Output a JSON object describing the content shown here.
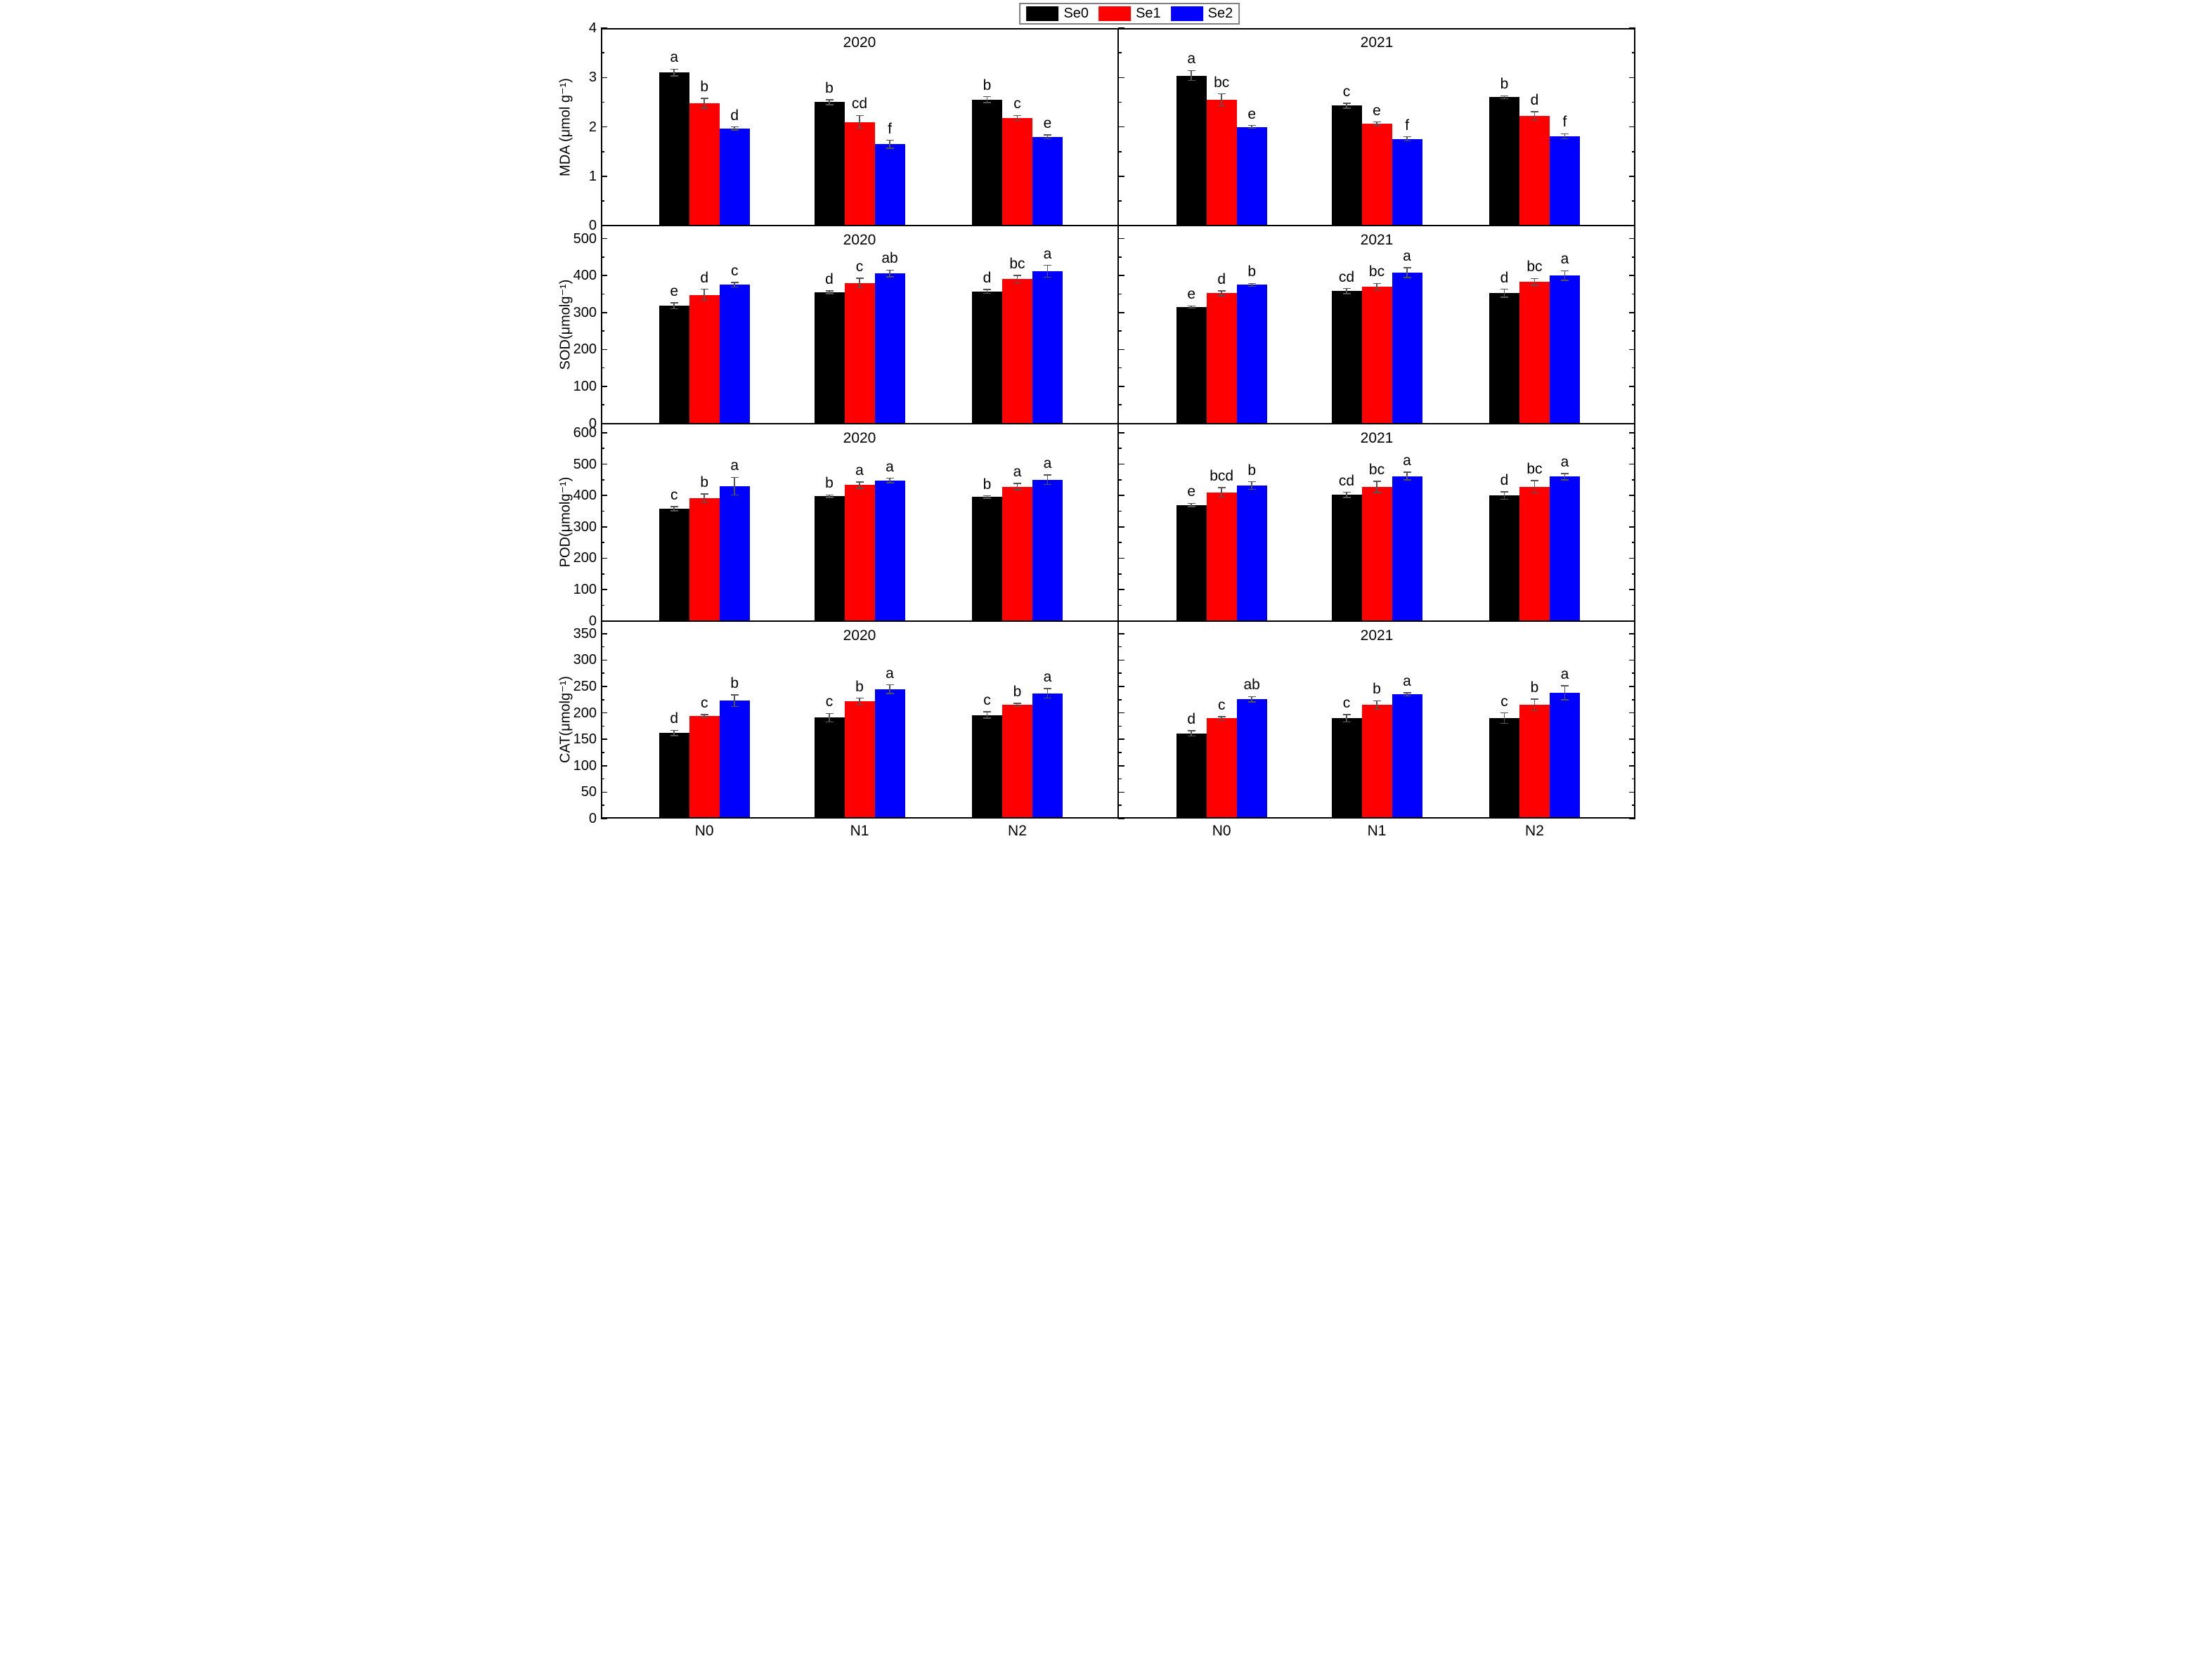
{
  "legend": {
    "labels": [
      "Se0",
      "Se1",
      "Se2"
    ]
  },
  "chart_data": {
    "type": "bar",
    "categories": [
      "N0",
      "N1",
      "N2"
    ],
    "series": [
      "Se0",
      "Se1",
      "Se2"
    ],
    "colors": [
      "#000000",
      "#ff0000",
      "#0000ff"
    ],
    "legend_position": "top-center",
    "grid": false,
    "rows": [
      {
        "measure": "MDA",
        "ylabel": "MDA (μmol g⁻¹)",
        "ticks": [
          0,
          1,
          2,
          3,
          4
        ],
        "minor": 0.5,
        "axis_top": 4,
        "panels": [
          {
            "title": "2020",
            "groups": [
              {
                "category": "N0",
                "bars": [
                  {
                    "series": "Se0",
                    "value": 3.1,
                    "error": 0.07,
                    "letter": "a"
                  },
                  {
                    "series": "Se1",
                    "value": 2.48,
                    "error": 0.1,
                    "letter": "b"
                  },
                  {
                    "series": "Se2",
                    "value": 1.97,
                    "error": 0.03,
                    "letter": "d"
                  }
                ]
              },
              {
                "category": "N1",
                "bars": [
                  {
                    "series": "Se0",
                    "value": 2.5,
                    "error": 0.05,
                    "letter": "b"
                  },
                  {
                    "series": "Se1",
                    "value": 2.1,
                    "error": 0.13,
                    "letter": "cd"
                  },
                  {
                    "series": "Se2",
                    "value": 1.65,
                    "error": 0.08,
                    "letter": "f"
                  }
                ]
              },
              {
                "category": "N2",
                "bars": [
                  {
                    "series": "Se0",
                    "value": 2.55,
                    "error": 0.06,
                    "letter": "b"
                  },
                  {
                    "series": "Se1",
                    "value": 2.18,
                    "error": 0.05,
                    "letter": "c"
                  },
                  {
                    "series": "Se2",
                    "value": 1.8,
                    "error": 0.04,
                    "letter": "e"
                  }
                ]
              }
            ]
          },
          {
            "title": "2021",
            "groups": [
              {
                "category": "N0",
                "bars": [
                  {
                    "series": "Se0",
                    "value": 3.04,
                    "error": 0.1,
                    "letter": "a"
                  },
                  {
                    "series": "Se1",
                    "value": 2.55,
                    "error": 0.12,
                    "letter": "bc"
                  },
                  {
                    "series": "Se2",
                    "value": 2.0,
                    "error": 0.03,
                    "letter": "e"
                  }
                ]
              },
              {
                "category": "N1",
                "bars": [
                  {
                    "series": "Se0",
                    "value": 2.43,
                    "error": 0.05,
                    "letter": "c"
                  },
                  {
                    "series": "Se1",
                    "value": 2.07,
                    "error": 0.03,
                    "letter": "e"
                  },
                  {
                    "series": "Se2",
                    "value": 1.76,
                    "error": 0.04,
                    "letter": "f"
                  }
                ]
              },
              {
                "category": "N2",
                "bars": [
                  {
                    "series": "Se0",
                    "value": 2.6,
                    "error": 0.03,
                    "letter": "b"
                  },
                  {
                    "series": "Se1",
                    "value": 2.22,
                    "error": 0.09,
                    "letter": "d"
                  },
                  {
                    "series": "Se2",
                    "value": 1.81,
                    "error": 0.05,
                    "letter": "f"
                  }
                ]
              }
            ]
          }
        ]
      },
      {
        "measure": "SOD",
        "ylabel": "SOD(μmolg⁻¹)",
        "ticks": [
          0,
          100,
          200,
          300,
          400,
          500
        ],
        "minor": 50,
        "axis_top": 535,
        "panels": [
          {
            "title": "2020",
            "groups": [
              {
                "category": "N0",
                "bars": [
                  {
                    "series": "Se0",
                    "value": 318,
                    "error": 8,
                    "letter": "e"
                  },
                  {
                    "series": "Se1",
                    "value": 348,
                    "error": 15,
                    "letter": "d"
                  },
                  {
                    "series": "Se2",
                    "value": 375,
                    "error": 6,
                    "letter": "c"
                  }
                ]
              },
              {
                "category": "N1",
                "bars": [
                  {
                    "series": "Se0",
                    "value": 355,
                    "error": 4,
                    "letter": "d"
                  },
                  {
                    "series": "Se1",
                    "value": 380,
                    "error": 13,
                    "letter": "c"
                  },
                  {
                    "series": "Se2",
                    "value": 406,
                    "error": 9,
                    "letter": "ab"
                  }
                ]
              },
              {
                "category": "N2",
                "bars": [
                  {
                    "series": "Se0",
                    "value": 357,
                    "error": 5,
                    "letter": "d"
                  },
                  {
                    "series": "Se1",
                    "value": 390,
                    "error": 10,
                    "letter": "bc"
                  },
                  {
                    "series": "Se2",
                    "value": 412,
                    "error": 16,
                    "letter": "a"
                  }
                ]
              }
            ]
          },
          {
            "title": "2021",
            "groups": [
              {
                "category": "N0",
                "bars": [
                  {
                    "series": "Se0",
                    "value": 315,
                    "error": 3,
                    "letter": "e"
                  },
                  {
                    "series": "Se1",
                    "value": 352,
                    "error": 7,
                    "letter": "d"
                  },
                  {
                    "series": "Se2",
                    "value": 375,
                    "error": 4,
                    "letter": "b"
                  }
                ]
              },
              {
                "category": "N1",
                "bars": [
                  {
                    "series": "Se0",
                    "value": 358,
                    "error": 7,
                    "letter": "cd"
                  },
                  {
                    "series": "Se1",
                    "value": 370,
                    "error": 9,
                    "letter": "bc"
                  },
                  {
                    "series": "Se2",
                    "value": 408,
                    "error": 13,
                    "letter": "a"
                  }
                ]
              },
              {
                "category": "N2",
                "bars": [
                  {
                    "series": "Se0",
                    "value": 352,
                    "error": 11,
                    "letter": "d"
                  },
                  {
                    "series": "Se1",
                    "value": 383,
                    "error": 9,
                    "letter": "bc"
                  },
                  {
                    "series": "Se2",
                    "value": 400,
                    "error": 13,
                    "letter": "a"
                  }
                ]
              }
            ]
          }
        ]
      },
      {
        "measure": "POD",
        "ylabel": "POD(μmolg⁻¹)",
        "ticks": [
          0,
          100,
          200,
          300,
          400,
          500,
          600
        ],
        "minor": 50,
        "axis_top": 630,
        "panels": [
          {
            "title": "2020",
            "groups": [
              {
                "category": "N0",
                "bars": [
                  {
                    "series": "Se0",
                    "value": 358,
                    "error": 7,
                    "letter": "c"
                  },
                  {
                    "series": "Se1",
                    "value": 392,
                    "error": 13,
                    "letter": "b"
                  },
                  {
                    "series": "Se2",
                    "value": 430,
                    "error": 28,
                    "letter": "a"
                  }
                ]
              },
              {
                "category": "N1",
                "bars": [
                  {
                    "series": "Se0",
                    "value": 398,
                    "error": 4,
                    "letter": "b"
                  },
                  {
                    "series": "Se1",
                    "value": 433,
                    "error": 10,
                    "letter": "a"
                  },
                  {
                    "series": "Se2",
                    "value": 448,
                    "error": 7,
                    "letter": "a"
                  }
                ]
              },
              {
                "category": "N2",
                "bars": [
                  {
                    "series": "Se0",
                    "value": 395,
                    "error": 4,
                    "letter": "b"
                  },
                  {
                    "series": "Se1",
                    "value": 428,
                    "error": 10,
                    "letter": "a"
                  },
                  {
                    "series": "Se2",
                    "value": 450,
                    "error": 15,
                    "letter": "a"
                  }
                ]
              }
            ]
          },
          {
            "title": "2021",
            "groups": [
              {
                "category": "N0",
                "bars": [
                  {
                    "series": "Se0",
                    "value": 370,
                    "error": 5,
                    "letter": "e"
                  },
                  {
                    "series": "Se1",
                    "value": 410,
                    "error": 15,
                    "letter": "bcd"
                  },
                  {
                    "series": "Se2",
                    "value": 432,
                    "error": 12,
                    "letter": "b"
                  }
                ]
              },
              {
                "category": "N1",
                "bars": [
                  {
                    "series": "Se0",
                    "value": 402,
                    "error": 8,
                    "letter": "cd"
                  },
                  {
                    "series": "Se1",
                    "value": 427,
                    "error": 18,
                    "letter": "bc"
                  },
                  {
                    "series": "Se2",
                    "value": 462,
                    "error": 12,
                    "letter": "a"
                  }
                ]
              },
              {
                "category": "N2",
                "bars": [
                  {
                    "series": "Se0",
                    "value": 400,
                    "error": 12,
                    "letter": "d"
                  },
                  {
                    "series": "Se1",
                    "value": 428,
                    "error": 20,
                    "letter": "bc"
                  },
                  {
                    "series": "Se2",
                    "value": 460,
                    "error": 10,
                    "letter": "a"
                  }
                ]
              }
            ]
          }
        ]
      },
      {
        "measure": "CAT",
        "ylabel": "CAT(μmolg⁻¹)",
        "ticks": [
          0,
          50,
          100,
          150,
          200,
          250,
          300,
          350
        ],
        "minor": 25,
        "axis_top": 374,
        "panels": [
          {
            "title": "2020",
            "groups": [
              {
                "category": "N0",
                "bars": [
                  {
                    "series": "Se0",
                    "value": 162,
                    "error": 5,
                    "letter": "d"
                  },
                  {
                    "series": "Se1",
                    "value": 194,
                    "error": 3,
                    "letter": "c"
                  },
                  {
                    "series": "Se2",
                    "value": 223,
                    "error": 11,
                    "letter": "b"
                  }
                ]
              },
              {
                "category": "N1",
                "bars": [
                  {
                    "series": "Se0",
                    "value": 191,
                    "error": 8,
                    "letter": "c"
                  },
                  {
                    "series": "Se1",
                    "value": 222,
                    "error": 6,
                    "letter": "b"
                  },
                  {
                    "series": "Se2",
                    "value": 245,
                    "error": 8,
                    "letter": "a"
                  }
                ]
              },
              {
                "category": "N2",
                "bars": [
                  {
                    "series": "Se0",
                    "value": 196,
                    "error": 6,
                    "letter": "c"
                  },
                  {
                    "series": "Se1",
                    "value": 215,
                    "error": 3,
                    "letter": "b"
                  },
                  {
                    "series": "Se2",
                    "value": 237,
                    "error": 9,
                    "letter": "a"
                  }
                ]
              }
            ]
          },
          {
            "title": "2021",
            "groups": [
              {
                "category": "N0",
                "bars": [
                  {
                    "series": "Se0",
                    "value": 161,
                    "error": 5,
                    "letter": "d"
                  },
                  {
                    "series": "Se1",
                    "value": 190,
                    "error": 3,
                    "letter": "c"
                  },
                  {
                    "series": "Se2",
                    "value": 226,
                    "error": 5,
                    "letter": "ab"
                  }
                ]
              },
              {
                "category": "N1",
                "bars": [
                  {
                    "series": "Se0",
                    "value": 190,
                    "error": 7,
                    "letter": "c"
                  },
                  {
                    "series": "Se1",
                    "value": 215,
                    "error": 8,
                    "letter": "b"
                  },
                  {
                    "series": "Se2",
                    "value": 235,
                    "error": 3,
                    "letter": "a"
                  }
                ]
              },
              {
                "category": "N2",
                "bars": [
                  {
                    "series": "Se0",
                    "value": 190,
                    "error": 10,
                    "letter": "c"
                  },
                  {
                    "series": "Se1",
                    "value": 215,
                    "error": 11,
                    "letter": "b"
                  },
                  {
                    "series": "Se2",
                    "value": 238,
                    "error": 13,
                    "letter": "a"
                  }
                ]
              }
            ]
          }
        ]
      }
    ]
  }
}
